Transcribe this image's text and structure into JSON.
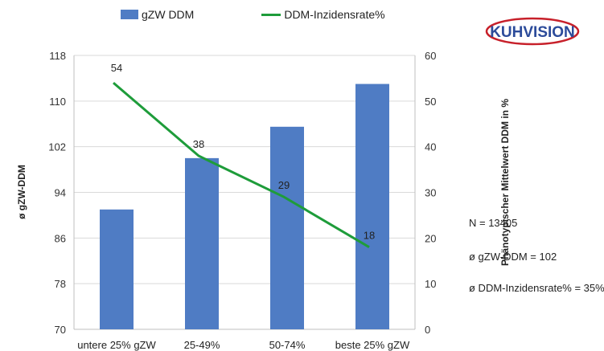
{
  "chart_data": {
    "type": "bar",
    "categories": [
      "untere 25% gZW",
      "25-49%",
      "50-74%",
      "beste 25% gZW"
    ],
    "series": [
      {
        "name": "gZW DDM",
        "kind": "bar",
        "axis": "left",
        "color": "#4f7cc4",
        "values": [
          91,
          100,
          105.5,
          113
        ]
      },
      {
        "name": "DDM-Inzidensrate%",
        "kind": "line",
        "axis": "right",
        "color": "#1e9c3a",
        "values": [
          54,
          38,
          29,
          18
        ],
        "labels": [
          "54",
          "38",
          "29",
          "18"
        ]
      }
    ],
    "ylabel": "ø gZW-DDM",
    "ylabel_right": "Phänotypischer Mittelwert DDM in %",
    "ylim": [
      70,
      118
    ],
    "ylim_right": [
      0,
      60
    ],
    "yticks": [
      70,
      78,
      86,
      94,
      102,
      110,
      118
    ],
    "yticks_right": [
      0,
      10,
      20,
      30,
      40,
      50,
      60
    ],
    "grid": true,
    "legend": "top"
  },
  "logo": {
    "text": "KUHVISION"
  },
  "stats": [
    "N = 13405",
    "ø gZW-DDM = 102",
    "ø DDM-Inzidensrate% = 35%"
  ]
}
